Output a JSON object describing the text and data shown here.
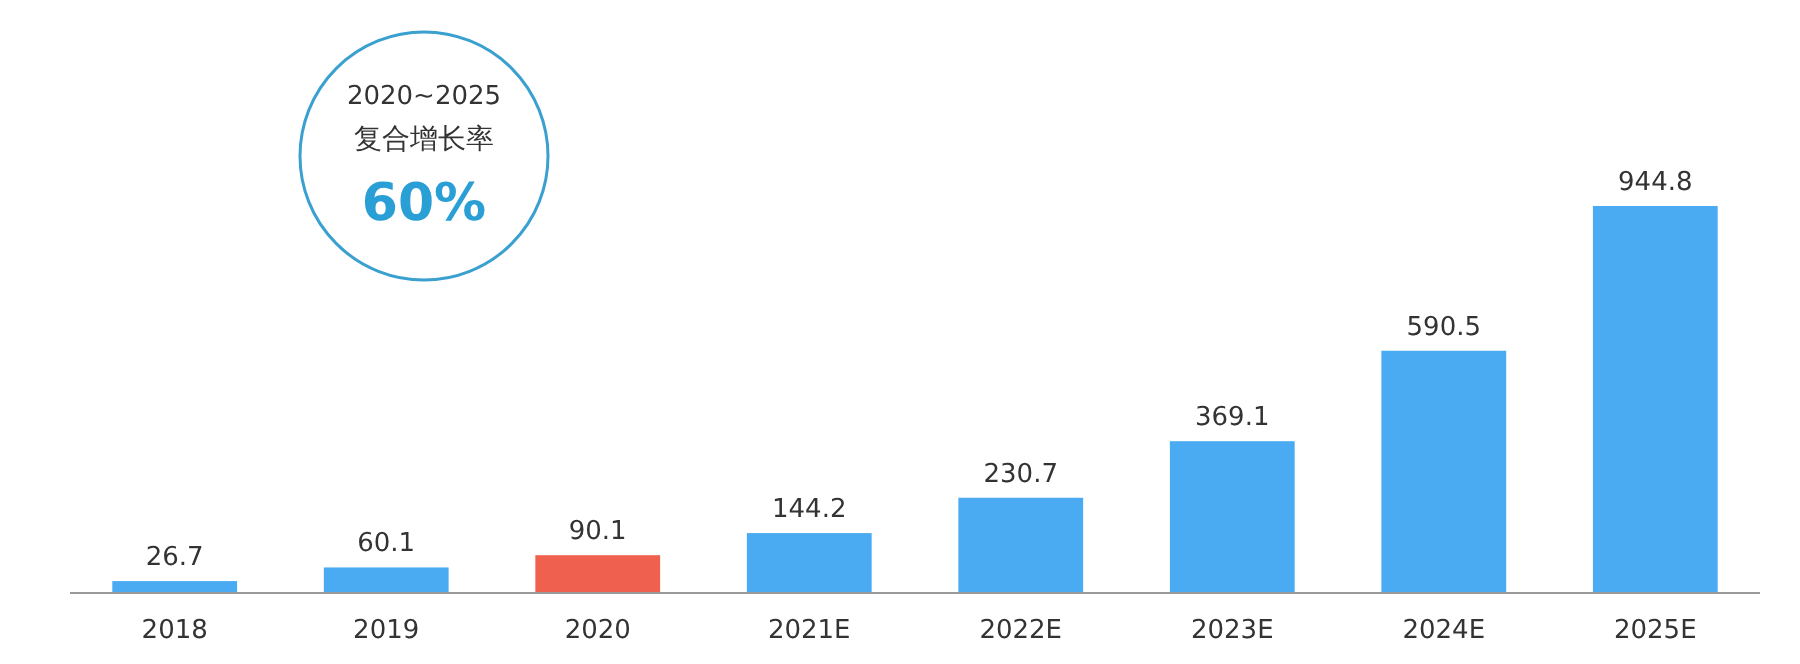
{
  "chart_data": {
    "type": "bar",
    "categories": [
      "2018",
      "2019",
      "2020",
      "2021E",
      "2022E",
      "2023E",
      "2024E",
      "2025E"
    ],
    "values": [
      26.7,
      60.1,
      90.1,
      144.2,
      230.7,
      369.1,
      590.5,
      944.8
    ],
    "colors": [
      "#4aabf2",
      "#4aabf2",
      "#f0604f",
      "#4aabf2",
      "#4aabf2",
      "#4aabf2",
      "#4aabf2",
      "#4aabf2"
    ],
    "data_labels": true,
    "annotations": [
      "2020~2025",
      "复合增长率",
      "60%"
    ]
  }
}
